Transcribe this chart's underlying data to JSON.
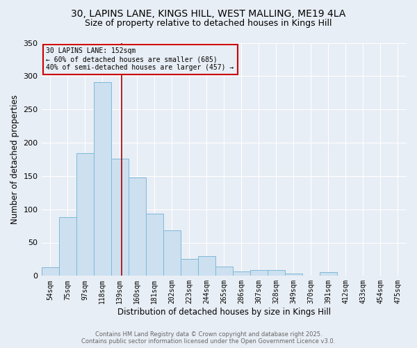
{
  "title": "30, LAPINS LANE, KINGS HILL, WEST MALLING, ME19 4LA",
  "subtitle": "Size of property relative to detached houses in Kings Hill",
  "bar_labels": [
    "54sqm",
    "75sqm",
    "97sqm",
    "118sqm",
    "139sqm",
    "160sqm",
    "181sqm",
    "202sqm",
    "223sqm",
    "244sqm",
    "265sqm",
    "286sqm",
    "307sqm",
    "328sqm",
    "349sqm",
    "370sqm",
    "391sqm",
    "412sqm",
    "433sqm",
    "454sqm",
    "475sqm"
  ],
  "bar_values": [
    13,
    88,
    184,
    291,
    176,
    148,
    93,
    68,
    25,
    30,
    14,
    7,
    9,
    9,
    3,
    0,
    6,
    0,
    0,
    0,
    0
  ],
  "bar_color": "#cce0f0",
  "bar_edge_color": "#7fb8d8",
  "bar_width": 1.0,
  "vline_color": "#aa0000",
  "vline_x": 3.62,
  "annotation_text": "30 LAPINS LANE: 152sqm\n← 60% of detached houses are smaller (685)\n40% of semi-detached houses are larger (457) →",
  "annotation_box_color": "#cc0000",
  "xlabel": "Distribution of detached houses by size in Kings Hill",
  "ylabel": "Number of detached properties",
  "ylim": [
    0,
    350
  ],
  "yticks": [
    0,
    50,
    100,
    150,
    200,
    250,
    300,
    350
  ],
  "background_color": "#e8eef5",
  "footer_line1": "Contains HM Land Registry data © Crown copyright and database right 2025.",
  "footer_line2": "Contains public sector information licensed under the Open Government Licence v3.0.",
  "title_fontsize": 10,
  "subtitle_fontsize": 9
}
